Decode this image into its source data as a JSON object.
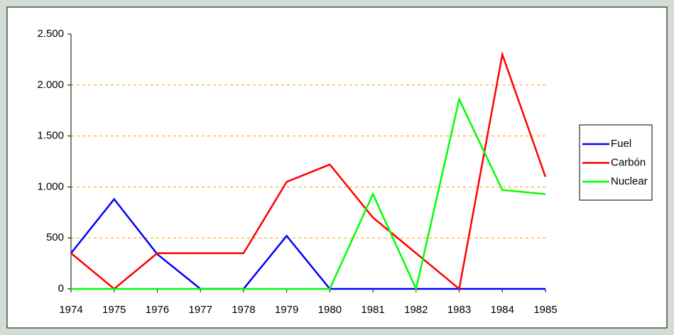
{
  "chart_data": {
    "type": "line",
    "categories": [
      "1974",
      "1975",
      "1976",
      "1977",
      "1978",
      "1979",
      "1980",
      "1981",
      "1982",
      "1983",
      "1984",
      "1985"
    ],
    "series": [
      {
        "name": "Fuel",
        "color": "#0000ff",
        "values": [
          350,
          880,
          340,
          0,
          0,
          520,
          0,
          0,
          0,
          0,
          0,
          0
        ]
      },
      {
        "name": "Carbón",
        "color": "#ff0000",
        "values": [
          350,
          0,
          350,
          350,
          350,
          1050,
          1220,
          700,
          350,
          0,
          2300,
          1100
        ]
      },
      {
        "name": "Nuclear",
        "color": "#00ff00",
        "values": [
          0,
          0,
          0,
          0,
          0,
          0,
          0,
          930,
          0,
          1860,
          970,
          930
        ]
      }
    ],
    "ylim": [
      0,
      2500
    ],
    "yticks": [
      0,
      500,
      {
        "value": 1000,
        "label": "1.000"
      },
      {
        "value": 1500,
        "label": "1.500"
      },
      {
        "value": 2000,
        "label": "2.000"
      },
      {
        "value": 2500,
        "label": "2.500"
      }
    ],
    "grid": true,
    "grid_color": "#ff9900",
    "legend": "right"
  }
}
